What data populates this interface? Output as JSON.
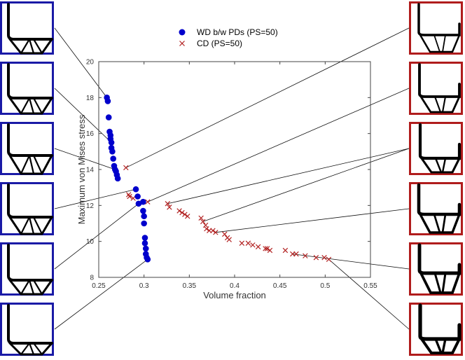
{
  "chart_data": {
    "type": "scatter",
    "xlabel": "Volume fraction",
    "ylabel": "Maximum von Mises stress",
    "xlim": [
      0.25,
      0.55
    ],
    "ylim": [
      8,
      20
    ],
    "xticks": [
      0.25,
      0.3,
      0.35,
      0.4,
      0.45,
      0.5,
      0.55
    ],
    "xtick_labels": [
      "0.25",
      "0.3",
      "0.35",
      "0.4",
      "0.45",
      "0.5",
      "0.55"
    ],
    "yticks": [
      8,
      10,
      12,
      14,
      16,
      18,
      20
    ],
    "ytick_labels": [
      "8",
      "10",
      "12",
      "14",
      "16",
      "18",
      "20"
    ],
    "grid": false,
    "legend_position": "top-center",
    "series": [
      {
        "name": "WD b/w PDs (PS=50)",
        "marker": "filled-circle",
        "color": "#0000cc",
        "points": [
          [
            0.259,
            18.0
          ],
          [
            0.26,
            17.8
          ],
          [
            0.261,
            16.9
          ],
          [
            0.262,
            16.1
          ],
          [
            0.263,
            15.9
          ],
          [
            0.263,
            15.7
          ],
          [
            0.264,
            15.5
          ],
          [
            0.264,
            15.2
          ],
          [
            0.265,
            15.0
          ],
          [
            0.266,
            14.6
          ],
          [
            0.267,
            14.2
          ],
          [
            0.268,
            14.0
          ],
          [
            0.269,
            13.9
          ],
          [
            0.27,
            13.7
          ],
          [
            0.271,
            13.5
          ],
          [
            0.291,
            12.9
          ],
          [
            0.293,
            12.5
          ],
          [
            0.294,
            12.1
          ],
          [
            0.299,
            12.2
          ],
          [
            0.299,
            11.7
          ],
          [
            0.3,
            11.4
          ],
          [
            0.3,
            11.0
          ],
          [
            0.301,
            10.2
          ],
          [
            0.301,
            9.9
          ],
          [
            0.302,
            9.6
          ],
          [
            0.302,
            9.3
          ],
          [
            0.303,
            9.1
          ],
          [
            0.304,
            9.0
          ]
        ]
      },
      {
        "name": "CD (PS=50)",
        "marker": "x",
        "color": "#b22222",
        "points": [
          [
            0.28,
            14.1
          ],
          [
            0.283,
            12.6
          ],
          [
            0.284,
            12.5
          ],
          [
            0.288,
            12.4
          ],
          [
            0.304,
            12.2
          ],
          [
            0.326,
            12.1
          ],
          [
            0.328,
            11.9
          ],
          [
            0.339,
            11.7
          ],
          [
            0.342,
            11.6
          ],
          [
            0.345,
            11.5
          ],
          [
            0.348,
            11.4
          ],
          [
            0.363,
            11.3
          ],
          [
            0.365,
            11.1
          ],
          [
            0.368,
            10.9
          ],
          [
            0.369,
            10.7
          ],
          [
            0.372,
            10.6
          ],
          [
            0.376,
            10.6
          ],
          [
            0.379,
            10.5
          ],
          [
            0.389,
            10.4
          ],
          [
            0.392,
            10.2
          ],
          [
            0.394,
            10.1
          ],
          [
            0.408,
            9.9
          ],
          [
            0.415,
            9.9
          ],
          [
            0.42,
            9.8
          ],
          [
            0.426,
            9.7
          ],
          [
            0.434,
            9.6
          ],
          [
            0.436,
            9.6
          ],
          [
            0.439,
            9.5
          ],
          [
            0.456,
            9.5
          ],
          [
            0.464,
            9.3
          ],
          [
            0.468,
            9.3
          ],
          [
            0.478,
            9.2
          ],
          [
            0.49,
            9.1
          ],
          [
            0.499,
            9.1
          ],
          [
            0.504,
            9.0
          ]
        ]
      }
    ],
    "insets": {
      "left": {
        "border_color": "#1a1aa6",
        "targets": [
          [
            0.259,
            18.0
          ],
          [
            0.264,
            15.5
          ],
          [
            0.268,
            14.0
          ],
          [
            0.291,
            12.9
          ],
          [
            0.294,
            12.1
          ],
          [
            0.304,
            9.0
          ]
        ]
      },
      "right": {
        "border_color": "#b01c1c",
        "targets": [
          [
            0.28,
            14.1
          ],
          [
            0.304,
            12.2
          ],
          [
            0.326,
            12.1
          ],
          [
            0.365,
            11.1
          ],
          [
            0.379,
            10.5
          ],
          [
            0.464,
            9.3
          ],
          [
            0.504,
            9.0
          ]
        ]
      }
    }
  }
}
